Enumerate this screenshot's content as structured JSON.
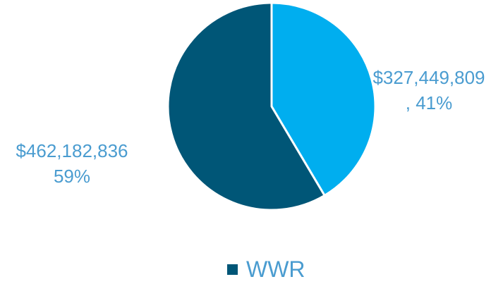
{
  "chart_data": {
    "type": "pie",
    "categories": [
      null,
      "WWR"
    ],
    "values": [
      327449809,
      462182836
    ],
    "value_labels": [
      "$327,449,809 , 41%",
      "$462,182,836 59%"
    ],
    "colors": [
      "#00aeef",
      "#005677"
    ],
    "legend": "bottom"
  }
}
